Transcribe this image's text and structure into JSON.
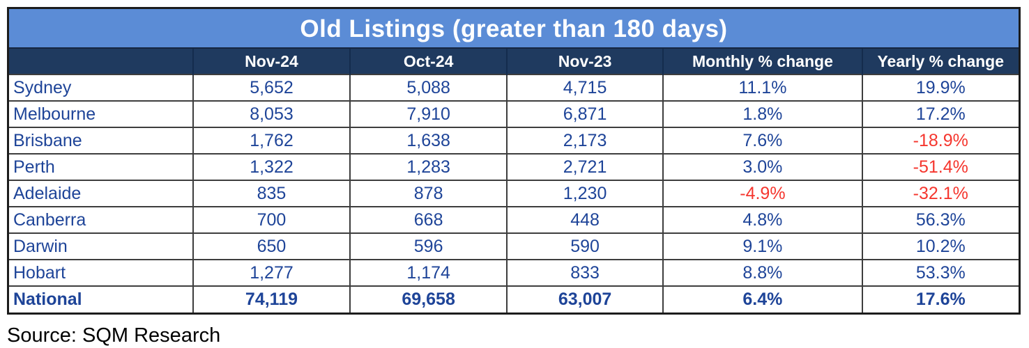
{
  "title": "Old Listings (greater than 180 days)",
  "source": "Source: SQM Research",
  "colors": {
    "title_bg": "#5b8cd6",
    "header_bg": "#1f3a5f",
    "value_text": "#1e4498",
    "negative_text": "#f5362e",
    "grid_line": "#3d3d3d"
  },
  "chart_data": {
    "type": "table",
    "title": "Old Listings (greater than 180 days)",
    "columns": [
      "",
      "Nov-24",
      "Oct-24",
      "Nov-23",
      "Monthly % change",
      "Yearly % change"
    ],
    "rows": [
      {
        "region": "Sydney",
        "bold": false,
        "values": [
          "5,652",
          "5,088",
          "4,715",
          "11.1%",
          "19.9%"
        ]
      },
      {
        "region": "Melbourne",
        "bold": false,
        "values": [
          "8,053",
          "7,910",
          "6,871",
          "1.8%",
          "17.2%"
        ]
      },
      {
        "region": "Brisbane",
        "bold": false,
        "values": [
          "1,762",
          "1,638",
          "2,173",
          "7.6%",
          "-18.9%"
        ]
      },
      {
        "region": "Perth",
        "bold": false,
        "values": [
          "1,322",
          "1,283",
          "2,721",
          "3.0%",
          "-51.4%"
        ]
      },
      {
        "region": "Adelaide",
        "bold": false,
        "values": [
          "835",
          "878",
          "1,230",
          "-4.9%",
          "-32.1%"
        ]
      },
      {
        "region": "Canberra",
        "bold": false,
        "values": [
          "700",
          "668",
          "448",
          "4.8%",
          "56.3%"
        ]
      },
      {
        "region": "Darwin",
        "bold": false,
        "values": [
          "650",
          "596",
          "590",
          "9.1%",
          "10.2%"
        ]
      },
      {
        "region": "Hobart",
        "bold": false,
        "values": [
          "1,277",
          "1,174",
          "833",
          "8.8%",
          "53.3%"
        ]
      },
      {
        "region": "National",
        "bold": true,
        "values": [
          "74,119",
          "69,658",
          "63,007",
          "6.4%",
          "17.6%"
        ]
      }
    ]
  }
}
